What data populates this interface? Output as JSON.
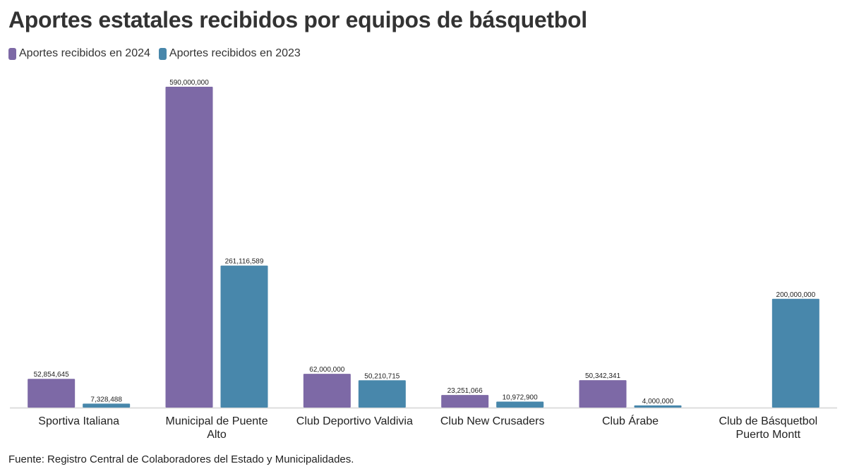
{
  "title": "Aportes estatales recibidos por equipos de básquetbol",
  "source": "Fuente: Registro Central de Colaboradores del Estado y Municipalidades.",
  "colors": {
    "series_2024": "#7d69a6",
    "series_2023": "#4887ab",
    "axis": "#dddddd",
    "label": "#222222"
  },
  "chart_data": {
    "type": "bar",
    "title": "Aportes estatales recibidos por equipos de básquetbol",
    "xlabel": "",
    "ylabel": "",
    "ylim": [
      0,
      590000000
    ],
    "grid": false,
    "legend_position": "top-left",
    "categories": [
      [
        "Sportiva Italiana"
      ],
      [
        "Municipal de Puente",
        "Alto"
      ],
      [
        "Club Deportivo Valdivia"
      ],
      [
        "Club New Crusaders"
      ],
      [
        "Club Árabe"
      ],
      [
        "Club de Básquetbol",
        "Puerto Montt"
      ]
    ],
    "series": [
      {
        "name": "Aportes recibidos en 2024",
        "values": [
          52854645,
          590000000,
          62000000,
          23251066,
          50342341,
          null
        ],
        "labels": [
          "52,854,645",
          "590,000,000",
          "62,000,000",
          "23,251,066",
          "50,342,341",
          ""
        ]
      },
      {
        "name": "Aportes recibidos en 2023",
        "values": [
          7328488,
          261116589,
          50210715,
          10972900,
          4000000,
          200000000
        ],
        "labels": [
          "7,328,488",
          "261,116,589",
          "50,210,715",
          "10,972,900",
          "4,000,000",
          "200,000,000"
        ]
      }
    ]
  }
}
